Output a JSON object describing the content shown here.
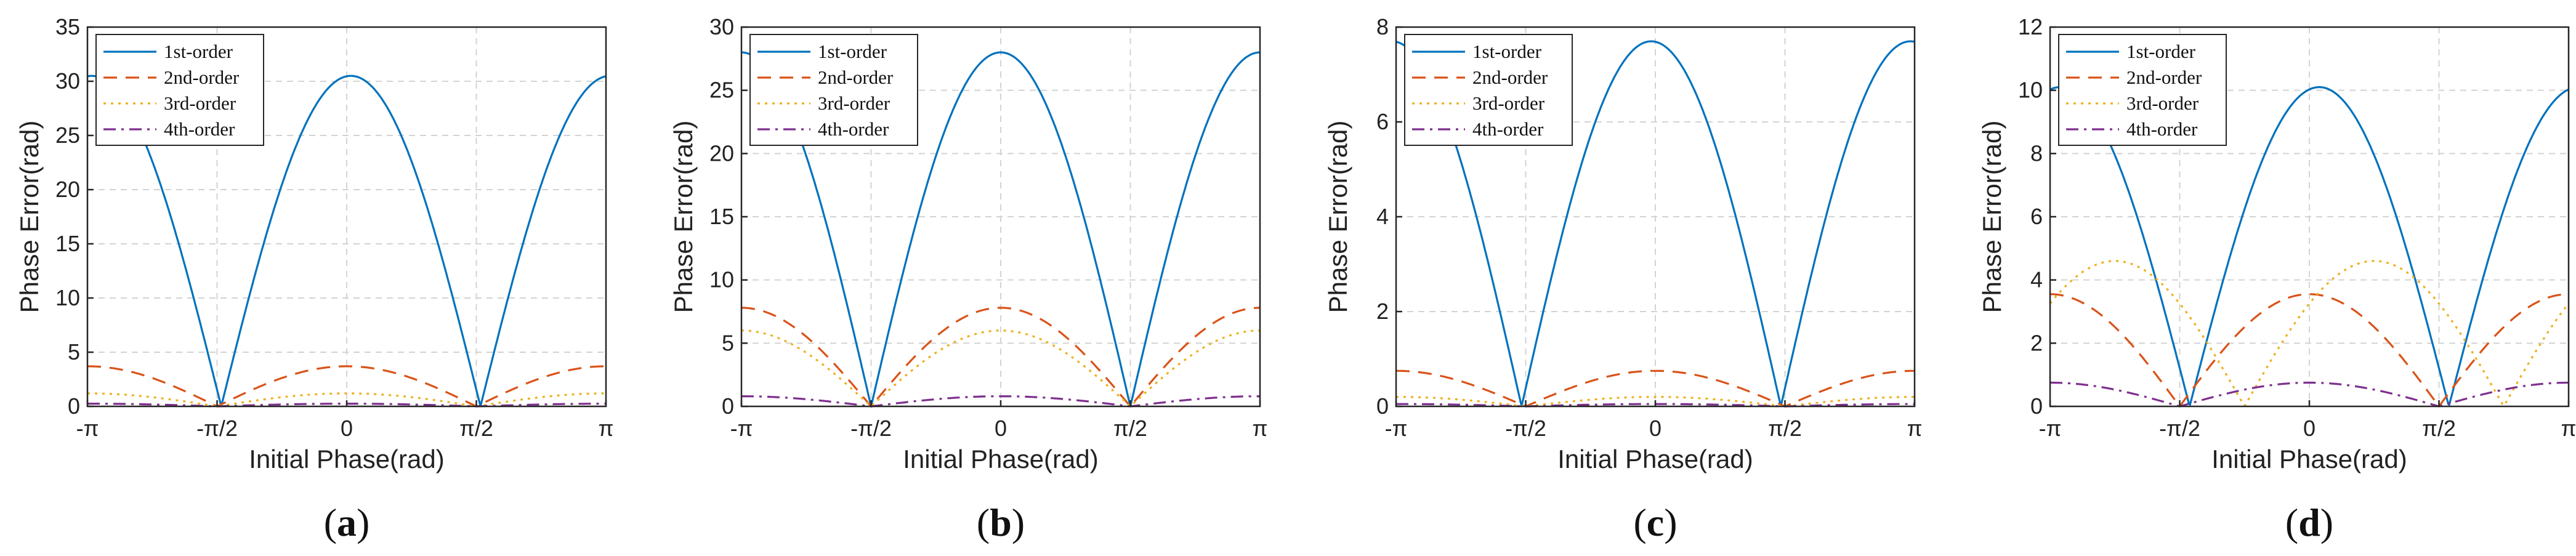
{
  "chart_data": [
    {
      "type": "line",
      "panel_label": "a",
      "xlabel": "Initial Phase(rad)",
      "ylabel": "Phase Error(rad)",
      "xlim": [
        -3.14159,
        3.14159
      ],
      "ylim": [
        0,
        35
      ],
      "yticks": [
        0,
        5,
        10,
        15,
        20,
        25,
        30,
        35
      ],
      "xtick_labels": [
        "-π",
        "-π/2",
        "0",
        "π/2",
        "π"
      ],
      "grid": true,
      "legend": "top-left",
      "series": [
        {
          "name": "1st-order",
          "color": "#0072BD",
          "dash": "solid",
          "amplitude": 30.5,
          "freq": 2,
          "zero_shift": 0.05
        },
        {
          "name": "2nd-order",
          "color": "#D95319",
          "dash": "dashed",
          "amplitude": 3.7,
          "freq": 2,
          "zero_shift": 0.0
        },
        {
          "name": "3rd-order",
          "color": "#EDB120",
          "dash": "dotted",
          "amplitude": 1.2,
          "freq": 2,
          "zero_shift": 0.0
        },
        {
          "name": "4th-order",
          "color": "#7E2F8E",
          "dash": "dashdot",
          "amplitude": 0.25,
          "freq": 2,
          "zero_shift": 0.0
        }
      ]
    },
    {
      "type": "line",
      "panel_label": "b",
      "xlabel": "Initial Phase(rad)",
      "ylabel": "Phase Error(rad)",
      "xlim": [
        -3.14159,
        3.14159
      ],
      "ylim": [
        0,
        30
      ],
      "yticks": [
        0,
        5,
        10,
        15,
        20,
        25,
        30
      ],
      "xtick_labels": [
        "-π",
        "-π/2",
        "0",
        "π/2",
        "π"
      ],
      "grid": true,
      "legend": "top-left",
      "series": [
        {
          "name": "1st-order",
          "color": "#0072BD",
          "dash": "solid",
          "amplitude": 28.0,
          "freq": 2,
          "zero_shift": 0.0
        },
        {
          "name": "2nd-order",
          "color": "#D95319",
          "dash": "dashed",
          "amplitude": 7.8,
          "freq": 2,
          "zero_shift": 0.0
        },
        {
          "name": "3rd-order",
          "color": "#EDB120",
          "dash": "dotted",
          "amplitude": 6.0,
          "freq": 2,
          "zero_shift": 0.0
        },
        {
          "name": "4th-order",
          "color": "#7E2F8E",
          "dash": "dashdot",
          "amplitude": 0.8,
          "freq": 2,
          "zero_shift": 0.0
        }
      ]
    },
    {
      "type": "line",
      "panel_label": "c",
      "xlabel": "Initial Phase(rad)",
      "ylabel": "Phase Error(rad)",
      "xlim": [
        -3.14159,
        3.14159
      ],
      "ylim": [
        0,
        8
      ],
      "yticks": [
        0,
        2,
        4,
        6,
        8
      ],
      "xtick_labels": [
        "-π",
        "-π/2",
        "0",
        "π/2",
        "π"
      ],
      "grid": true,
      "legend": "top-left",
      "series": [
        {
          "name": "1st-order",
          "color": "#0072BD",
          "dash": "solid",
          "amplitude": 7.7,
          "freq": 2,
          "zero_shift": -0.05
        },
        {
          "name": "2nd-order",
          "color": "#D95319",
          "dash": "dashed",
          "amplitude": 0.75,
          "freq": 2,
          "zero_shift": 0.0
        },
        {
          "name": "3rd-order",
          "color": "#EDB120",
          "dash": "dotted",
          "amplitude": 0.2,
          "freq": 2,
          "zero_shift": 0.0
        },
        {
          "name": "4th-order",
          "color": "#7E2F8E",
          "dash": "dashdot",
          "amplitude": 0.05,
          "freq": 2,
          "zero_shift": 0.0
        }
      ]
    },
    {
      "type": "line",
      "panel_label": "d",
      "xlabel": "Initial Phase(rad)",
      "ylabel": "Phase Error(rad)",
      "xlim": [
        -3.14159,
        3.14159
      ],
      "ylim": [
        0,
        12
      ],
      "yticks": [
        0,
        2,
        4,
        6,
        8,
        10,
        12
      ],
      "xtick_labels": [
        "-π",
        "-π/2",
        "0",
        "π/2",
        "π"
      ],
      "grid": true,
      "legend": "top-left",
      "series": [
        {
          "name": "1st-order",
          "color": "#0072BD",
          "dash": "solid",
          "amplitude": 10.1,
          "freq": 2,
          "zero_shift": 0.12
        },
        {
          "name": "2nd-order",
          "color": "#D95319",
          "dash": "dashed",
          "amplitude": 3.55,
          "freq": 2,
          "zero_shift": 0.0
        },
        {
          "name": "3rd-order",
          "color": "#EDB120",
          "dash": "dotted",
          "amplitude": 4.6,
          "freq": 2,
          "zero_shift": 0.785
        },
        {
          "name": "4th-order",
          "color": "#7E2F8E",
          "dash": "dashdot",
          "amplitude": 0.75,
          "freq": 2,
          "zero_shift": 0.0
        }
      ]
    }
  ]
}
